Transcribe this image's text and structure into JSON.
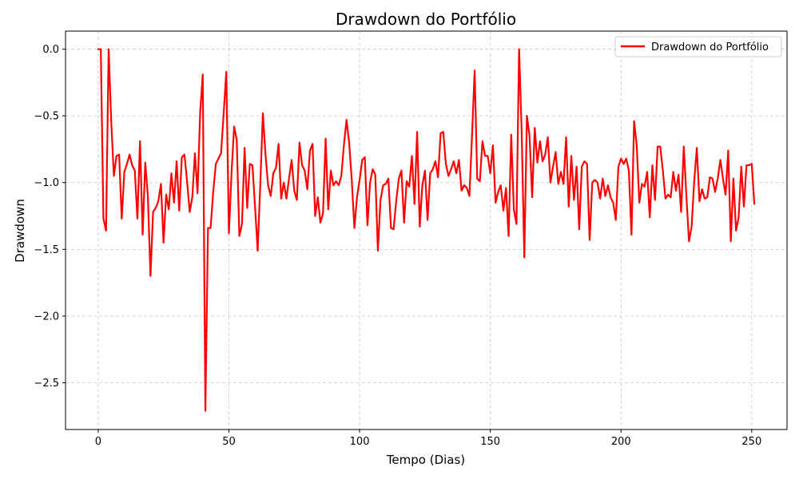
{
  "chart_data": {
    "type": "line",
    "title": "Drawdown do Portfólio",
    "xlabel": "Tempo (Dias)",
    "ylabel": "Drawdown",
    "xlim": [
      -12.5,
      263.5
    ],
    "ylim": [
      -2.85,
      0.135
    ],
    "xticks": [
      0,
      50,
      100,
      150,
      200,
      250
    ],
    "yticks": [
      0.0,
      -0.5,
      -1.0,
      -1.5,
      -2.0,
      -2.5
    ],
    "xtick_labels": [
      "0",
      "50",
      "100",
      "150",
      "200",
      "250"
    ],
    "ytick_labels": [
      "0.0",
      "−0.5",
      "−1.0",
      "−1.5",
      "−2.0",
      "−2.5"
    ],
    "grid": true,
    "legend_position": "top-right",
    "series": [
      {
        "name": "Drawdown do Portfólio",
        "color": "#ff0000",
        "values": [
          0.0,
          0.0,
          -1.27,
          -1.36,
          0.0,
          -0.55,
          -0.95,
          -0.8,
          -0.79,
          -1.27,
          -0.92,
          -0.86,
          -0.79,
          -0.87,
          -0.91,
          -1.27,
          -0.69,
          -1.39,
          -0.85,
          -1.1,
          -1.7,
          -1.22,
          -1.19,
          -1.14,
          -1.01,
          -1.45,
          -1.09,
          -1.2,
          -0.93,
          -1.15,
          -0.84,
          -1.21,
          -0.81,
          -0.79,
          -0.99,
          -1.22,
          -1.11,
          -0.78,
          -1.08,
          -0.48,
          -0.19,
          -2.71,
          -1.34,
          -1.34,
          -1.07,
          -0.86,
          -0.82,
          -0.78,
          -0.48,
          -0.17,
          -1.38,
          -0.93,
          -0.58,
          -0.68,
          -1.4,
          -1.31,
          -0.74,
          -1.19,
          -0.86,
          -0.87,
          -1.18,
          -1.51,
          -1.02,
          -0.48,
          -0.79,
          -1.02,
          -1.1,
          -0.93,
          -0.89,
          -0.71,
          -1.12,
          -1.0,
          -1.12,
          -0.97,
          -0.83,
          -1.06,
          -1.13,
          -0.7,
          -0.87,
          -0.91,
          -1.05,
          -0.76,
          -0.71,
          -1.25,
          -1.11,
          -1.3,
          -1.23,
          -0.67,
          -1.2,
          -0.91,
          -1.02,
          -0.99,
          -1.02,
          -0.95,
          -0.72,
          -0.53,
          -0.7,
          -0.98,
          -1.34,
          -1.11,
          -0.98,
          -0.83,
          -0.81,
          -1.32,
          -1.0,
          -0.9,
          -0.94,
          -1.51,
          -1.13,
          -1.02,
          -1.01,
          -0.97,
          -1.34,
          -1.35,
          -1.14,
          -0.97,
          -0.91,
          -1.3,
          -0.99,
          -1.03,
          -0.8,
          -1.16,
          -0.62,
          -1.33,
          -1.02,
          -0.91,
          -1.28,
          -0.93,
          -0.9,
          -0.84,
          -0.96,
          -0.63,
          -0.62,
          -0.86,
          -0.95,
          -0.9,
          -0.84,
          -0.93,
          -0.83,
          -1.06,
          -1.02,
          -1.04,
          -1.1,
          -0.65,
          -0.16,
          -0.97,
          -0.99,
          -0.69,
          -0.8,
          -0.8,
          -0.93,
          -0.72,
          -1.15,
          -1.07,
          -1.02,
          -1.21,
          -1.04,
          -1.4,
          -0.64,
          -1.2,
          -1.31,
          0.0,
          -0.62,
          -1.56,
          -0.5,
          -0.65,
          -1.11,
          -0.59,
          -0.85,
          -0.69,
          -0.84,
          -0.79,
          -0.66,
          -1.0,
          -0.88,
          -0.77,
          -1.01,
          -0.92,
          -1.01,
          -0.66,
          -1.18,
          -0.8,
          -1.13,
          -0.88,
          -1.35,
          -0.88,
          -0.84,
          -0.86,
          -1.43,
          -1.0,
          -0.98,
          -1.0,
          -1.12,
          -0.97,
          -1.1,
          -1.02,
          -1.11,
          -1.15,
          -1.28,
          -0.88,
          -0.82,
          -0.86,
          -0.82,
          -0.91,
          -1.39,
          -0.54,
          -0.72,
          -1.15,
          -1.01,
          -1.03,
          -0.92,
          -1.26,
          -0.87,
          -1.13,
          -0.73,
          -0.73,
          -0.91,
          -1.12,
          -1.09,
          -1.11,
          -0.92,
          -1.06,
          -0.94,
          -1.22,
          -0.73,
          -1.1,
          -1.44,
          -1.33,
          -0.99,
          -0.74,
          -1.14,
          -1.05,
          -1.12,
          -1.11,
          -0.96,
          -0.97,
          -1.07,
          -0.97,
          -0.83,
          -0.97,
          -1.09,
          -0.76,
          -1.44,
          -0.97,
          -1.36,
          -1.26,
          -0.88,
          -1.18,
          -0.87,
          -0.87,
          -0.86,
          -1.16
        ]
      }
    ]
  }
}
